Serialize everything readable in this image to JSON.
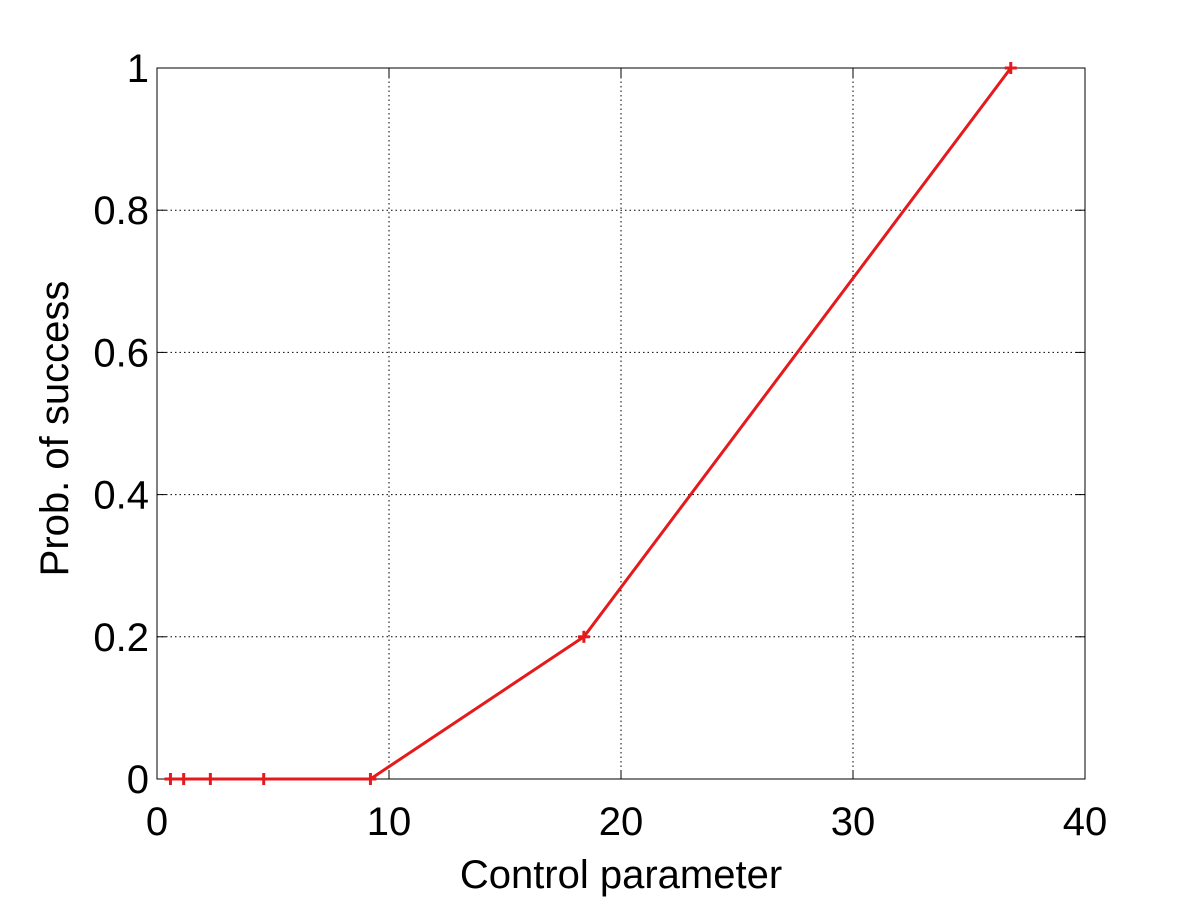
{
  "chart_data": {
    "type": "line",
    "title": "",
    "xlabel": "Control parameter",
    "ylabel": "Prob. of success",
    "xlim": [
      0,
      40
    ],
    "ylim": [
      0,
      1
    ],
    "xticks": [
      0,
      10,
      20,
      30,
      40
    ],
    "xtick_labels": [
      "0",
      "10",
      "20",
      "30",
      "40"
    ],
    "yticks": [
      0,
      0.2,
      0.4,
      0.6,
      0.8,
      1
    ],
    "ytick_labels": [
      "0",
      "0.2",
      "0.4",
      "0.6",
      "0.8",
      "1"
    ],
    "grid": true,
    "series": [
      {
        "color": "#e41a1c",
        "marker": "plus",
        "x": [
          0.58,
          1.15,
          2.3,
          4.6,
          9.2,
          18.4,
          36.8
        ],
        "y": [
          0,
          0,
          0,
          0,
          0,
          0.2,
          1
        ]
      }
    ]
  }
}
